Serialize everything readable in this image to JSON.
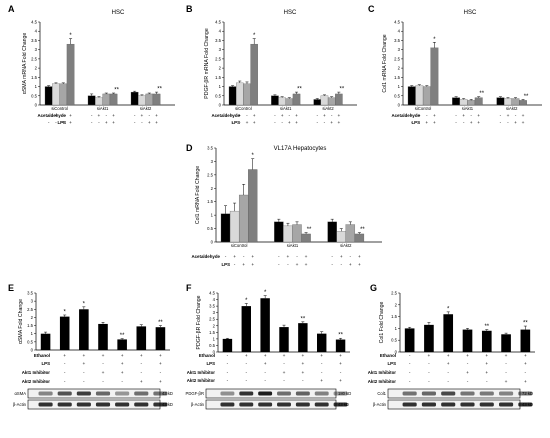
{
  "chart_data": [
    {
      "id": "A",
      "panel_letter": "A",
      "type": "bar",
      "title": "HSC",
      "ylabel": "αSMA mRNA Fold Change",
      "ylim": [
        0,
        4.5
      ],
      "yticks": [
        "0",
        "0.5",
        "1",
        "1.5",
        "2",
        "2.5",
        "3",
        "3.5",
        "4",
        "4.5"
      ],
      "groups": [
        {
          "label": "siControl",
          "values": [
            1.0,
            1.15,
            1.15,
            3.3
          ],
          "errors": [
            0.05,
            0.05,
            0.05,
            0.3
          ],
          "marks": [
            "",
            "",
            "",
            "*"
          ]
        },
        {
          "label": "siAkt1",
          "values": [
            0.5,
            0.4,
            0.6,
            0.6
          ],
          "errors": [
            0.1,
            0.05,
            0.05,
            0.05
          ],
          "marks": [
            "",
            "",
            "",
            "**"
          ]
        },
        {
          "label": "siAkt2",
          "values": [
            0.7,
            0.5,
            0.6,
            0.6
          ],
          "errors": [
            0.05,
            0.05,
            0.05,
            0.1
          ],
          "marks": [
            "",
            "",
            "",
            "**"
          ]
        }
      ],
      "colors": [
        "#000000",
        "#d9d9d9",
        "#a6a6a6",
        "#7f7f7f"
      ],
      "treatments": [
        {
          "label": "Acetaldehyde",
          "signs": [
            "-",
            "+",
            "-",
            "+"
          ]
        },
        {
          "label": "LPS",
          "signs": [
            "-",
            "-",
            "+",
            "+"
          ]
        }
      ]
    },
    {
      "id": "B",
      "panel_letter": "B",
      "type": "bar",
      "title": "HSC",
      "ylabel": "PDGF-βR mRNA Fold Change",
      "ylim": [
        0,
        4.5
      ],
      "yticks": [
        "0",
        "0.5",
        "1",
        "1.5",
        "2",
        "2.5",
        "3",
        "3.5",
        "4",
        "4.5"
      ],
      "groups": [
        {
          "label": "siControl",
          "values": [
            1.0,
            1.2,
            1.15,
            3.3
          ],
          "errors": [
            0.05,
            0.1,
            0.1,
            0.3
          ],
          "marks": [
            "",
            "",
            "",
            "*"
          ]
        },
        {
          "label": "siAkt1",
          "values": [
            0.5,
            0.4,
            0.35,
            0.6
          ],
          "errors": [
            0.05,
            0.05,
            0.05,
            0.1
          ],
          "marks": [
            "",
            "",
            "",
            "**"
          ]
        },
        {
          "label": "siAkt2",
          "values": [
            0.3,
            0.5,
            0.4,
            0.6
          ],
          "errors": [
            0.05,
            0.05,
            0.05,
            0.1
          ],
          "marks": [
            "",
            "",
            "",
            "**"
          ]
        }
      ],
      "colors": [
        "#000000",
        "#d9d9d9",
        "#a6a6a6",
        "#7f7f7f"
      ],
      "treatments": [
        {
          "label": "Acetaldehyde",
          "signs": [
            "-",
            "+",
            "-",
            "+"
          ]
        },
        {
          "label": "LPS",
          "signs": [
            "-",
            "-",
            "+",
            "+"
          ]
        }
      ]
    },
    {
      "id": "C",
      "panel_letter": "C",
      "type": "bar",
      "title": "HSC",
      "ylabel": "Col1 mRNA Fold Change",
      "ylim": [
        0,
        4.5
      ],
      "yticks": [
        "0",
        "0.5",
        "1",
        "1.5",
        "2",
        "2.5",
        "3",
        "3.5",
        "4",
        "4.5"
      ],
      "groups": [
        {
          "label": "siControl",
          "values": [
            1.0,
            1.05,
            1.0,
            3.1
          ],
          "errors": [
            0.05,
            0.05,
            0.05,
            0.3
          ],
          "marks": [
            "",
            "",
            "",
            "*"
          ]
        },
        {
          "label": "siAkt1",
          "values": [
            0.4,
            0.3,
            0.25,
            0.4
          ],
          "errors": [
            0.05,
            0.05,
            0.05,
            0.05
          ],
          "marks": [
            "",
            "",
            "",
            "**"
          ]
        },
        {
          "label": "siAkt2",
          "values": [
            0.4,
            0.35,
            0.35,
            0.25
          ],
          "errors": [
            0.05,
            0.05,
            0.05,
            0.05
          ],
          "marks": [
            "",
            "",
            "",
            "**"
          ]
        }
      ],
      "colors": [
        "#000000",
        "#d9d9d9",
        "#a6a6a6",
        "#7f7f7f"
      ],
      "treatments": [
        {
          "label": "Acetaldehyde",
          "signs": [
            "-",
            "+",
            "-",
            "+"
          ]
        },
        {
          "label": "LPS",
          "signs": [
            "-",
            "-",
            "+",
            "+"
          ]
        }
      ]
    },
    {
      "id": "D",
      "panel_letter": "D",
      "type": "bar",
      "title": "VL17A Hepatocytes",
      "ylabel": "Col1 mRNA Fold Change",
      "ylim": [
        0,
        3.5
      ],
      "yticks": [
        "0",
        "0.5",
        "1",
        "1.5",
        "2",
        "2.5",
        "3",
        "3.5"
      ],
      "groups": [
        {
          "label": "siControl",
          "values": [
            1.05,
            1.15,
            1.75,
            2.7
          ],
          "errors": [
            0.3,
            0.3,
            0.4,
            0.4
          ],
          "marks": [
            "",
            "",
            "",
            "*"
          ]
        },
        {
          "label": "siAkt1",
          "values": [
            0.75,
            0.6,
            0.65,
            0.3
          ],
          "errors": [
            0.1,
            0.1,
            0.1,
            0.05
          ],
          "marks": [
            "",
            "",
            "",
            "**"
          ]
        },
        {
          "label": "siAkt2",
          "values": [
            0.75,
            0.4,
            0.65,
            0.3
          ],
          "errors": [
            0.1,
            0.1,
            0.1,
            0.05
          ],
          "marks": [
            "",
            "",
            "",
            "**"
          ]
        }
      ],
      "colors": [
        "#000000",
        "#d9d9d9",
        "#a6a6a6",
        "#7f7f7f"
      ],
      "treatments": [
        {
          "label": "Acetaldehyde",
          "signs": [
            "-",
            "+",
            "-",
            "+"
          ]
        },
        {
          "label": "LPS",
          "signs": [
            "-",
            "-",
            "+",
            "+"
          ]
        }
      ]
    },
    {
      "id": "E",
      "panel_letter": "E",
      "type": "bar",
      "title": "",
      "ylabel": "αSMA Fold Change",
      "ylim": [
        0,
        3.5
      ],
      "yticks": [
        "0",
        "0.5",
        "1",
        "1.5",
        "2",
        "2.5",
        "3",
        "3.5"
      ],
      "bars": [
        {
          "value": 1.0,
          "error": 0.1,
          "mark": ""
        },
        {
          "value": 2.05,
          "error": 0.1,
          "mark": "*"
        },
        {
          "value": 2.5,
          "error": 0.15,
          "mark": "*"
        },
        {
          "value": 1.6,
          "error": 0.1,
          "mark": ""
        },
        {
          "value": 0.65,
          "error": 0.05,
          "mark": "**"
        },
        {
          "value": 1.45,
          "error": 0.1,
          "mark": ""
        },
        {
          "value": 1.4,
          "error": 0.1,
          "mark": "**"
        }
      ],
      "treatments": [
        {
          "label": "Ethanol",
          "signs": [
            "-",
            "+",
            "+",
            "+",
            "+",
            "+",
            "+"
          ]
        },
        {
          "label": "LPS",
          "signs": [
            "-",
            "-",
            "+",
            "-",
            "+",
            "-",
            "+"
          ]
        },
        {
          "label": "Akt1 Inhibitor",
          "signs": [
            "-",
            "-",
            "-",
            "+",
            "+",
            "-",
            "-"
          ]
        },
        {
          "label": "Akt2 Inhibitor",
          "signs": [
            "-",
            "-",
            "-",
            "-",
            "-",
            "+",
            "+"
          ]
        }
      ],
      "blot": {
        "top_label": "αSMA",
        "top_kd": "43 kD",
        "bottom_label": "β-Actin",
        "bottom_kd": "43 kD"
      }
    },
    {
      "id": "F",
      "panel_letter": "F",
      "type": "bar",
      "title": "",
      "ylabel": "PDGF-βR Fold Change",
      "ylim": [
        0,
        4.5
      ],
      "yticks": [
        "0",
        "0.5",
        "1",
        "1.5",
        "2",
        "2.5",
        "3",
        "3.5",
        "4",
        "4.5"
      ],
      "bars": [
        {
          "value": 1.0,
          "error": 0.05,
          "mark": ""
        },
        {
          "value": 3.5,
          "error": 0.2,
          "mark": "*"
        },
        {
          "value": 4.1,
          "error": 0.2,
          "mark": "*"
        },
        {
          "value": 1.9,
          "error": 0.15,
          "mark": ""
        },
        {
          "value": 2.2,
          "error": 0.1,
          "mark": "**"
        },
        {
          "value": 1.4,
          "error": 0.15,
          "mark": ""
        },
        {
          "value": 0.95,
          "error": 0.1,
          "mark": "**"
        }
      ],
      "treatments": [
        {
          "label": "Ethanol",
          "signs": [
            "-",
            "+",
            "+",
            "+",
            "+",
            "+",
            "+"
          ]
        },
        {
          "label": "LPS",
          "signs": [
            "-",
            "-",
            "+",
            "-",
            "+",
            "-",
            "+"
          ]
        },
        {
          "label": "Akt1 Inhibitor",
          "signs": [
            "-",
            "-",
            "-",
            "+",
            "+",
            "-",
            "-"
          ]
        },
        {
          "label": "Akt2 Inhibitor",
          "signs": [
            "-",
            "-",
            "-",
            "-",
            "-",
            "+",
            "+"
          ]
        }
      ],
      "blot": {
        "top_label": "PDGF-βR",
        "top_kd": "180 kD",
        "bottom_label": "β-Actin",
        "bottom_kd": "43 kD"
      }
    },
    {
      "id": "G",
      "panel_letter": "G",
      "type": "bar",
      "title": "",
      "ylabel": "Col1 Fold Change",
      "ylim": [
        0,
        2.5
      ],
      "yticks": [
        "0",
        "0.5",
        "1",
        "1.5",
        "2",
        "2.5"
      ],
      "bars": [
        {
          "value": 1.0,
          "error": 0.05,
          "mark": ""
        },
        {
          "value": 1.15,
          "error": 0.1,
          "mark": ""
        },
        {
          "value": 1.6,
          "error": 0.1,
          "mark": "*"
        },
        {
          "value": 0.95,
          "error": 0.05,
          "mark": ""
        },
        {
          "value": 0.9,
          "error": 0.05,
          "mark": "**"
        },
        {
          "value": 0.75,
          "error": 0.05,
          "mark": ""
        },
        {
          "value": 0.95,
          "error": 0.15,
          "mark": "**"
        }
      ],
      "treatments": [
        {
          "label": "Ethanol",
          "signs": [
            "-",
            "+",
            "+",
            "+",
            "+",
            "+",
            "+"
          ]
        },
        {
          "label": "LPS",
          "signs": [
            "-",
            "-",
            "+",
            "-",
            "+",
            "-",
            "+"
          ]
        },
        {
          "label": "Akt1 Inhibitor",
          "signs": [
            "-",
            "-",
            "-",
            "+",
            "+",
            "-",
            "-"
          ]
        },
        {
          "label": "Akt2 Inhibitor",
          "signs": [
            "-",
            "-",
            "-",
            "-",
            "-",
            "+",
            "+"
          ]
        }
      ],
      "blot": {
        "top_label": "Col1",
        "top_kd": "72 kD",
        "bottom_label": "β-Actin",
        "bottom_kd": "43 kD"
      }
    }
  ]
}
